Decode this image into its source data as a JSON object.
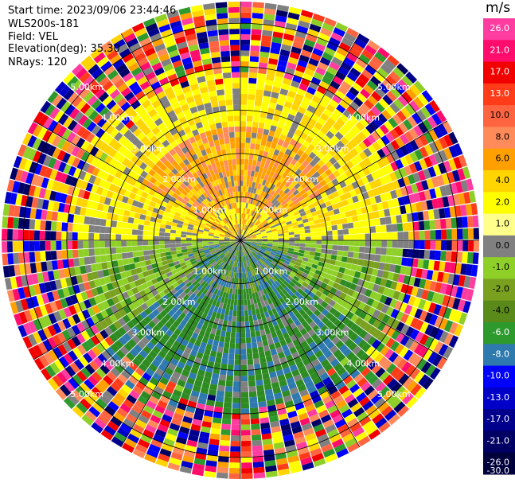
{
  "header": {
    "start_time": "Start time: 2023/09/06 23:44:46",
    "station": "WLS200s-181",
    "field": "Field: VEL",
    "elevation": "Elevation(deg): 35.30",
    "nrays": "NRays: 120"
  },
  "colorbar": {
    "unit": "m/s",
    "ticks": [
      "26.0",
      "21.0",
      "17.0",
      "13.0",
      "10.0",
      "8.0",
      "6.0",
      "4.0",
      "2.0",
      "1.0",
      "0.0",
      "-1.0",
      "-2.0",
      "-4.0",
      "-6.0",
      "-8.0",
      "-10.0",
      "-13.0",
      "-17.0",
      "-21.0",
      "-26.0",
      "-30.0"
    ],
    "colors": [
      "#ff3ca0",
      "#ff0c6c",
      "#f20000",
      "#ff3c1a",
      "#ff6440",
      "#ff8a5a",
      "#ffa000",
      "#ffd400",
      "#ffff00",
      "#ffff8c",
      "#808080",
      "#8fd028",
      "#7aa020",
      "#5a8a1a",
      "#2e9a2e",
      "#2e7aae",
      "#0000ff",
      "#0000c8",
      "#00008c",
      "#000064",
      "#00003c"
    ]
  },
  "chart_data": {
    "type": "heatmap",
    "projection": "PPI polar",
    "field": "VEL",
    "nrays": 120,
    "range_rings_km": [
      1.0,
      2.0,
      3.0,
      4.0,
      5.0
    ],
    "ring_labels": [
      "1.00km",
      "2.00km",
      "3.00km",
      "4.00km",
      "5.00km"
    ],
    "max_range_km": 5.5,
    "vmin": -30.0,
    "vmax": 30.0,
    "pattern": "north half positive velocities (yellow/orange), south half negative (green), noise beyond ~3.5km"
  }
}
